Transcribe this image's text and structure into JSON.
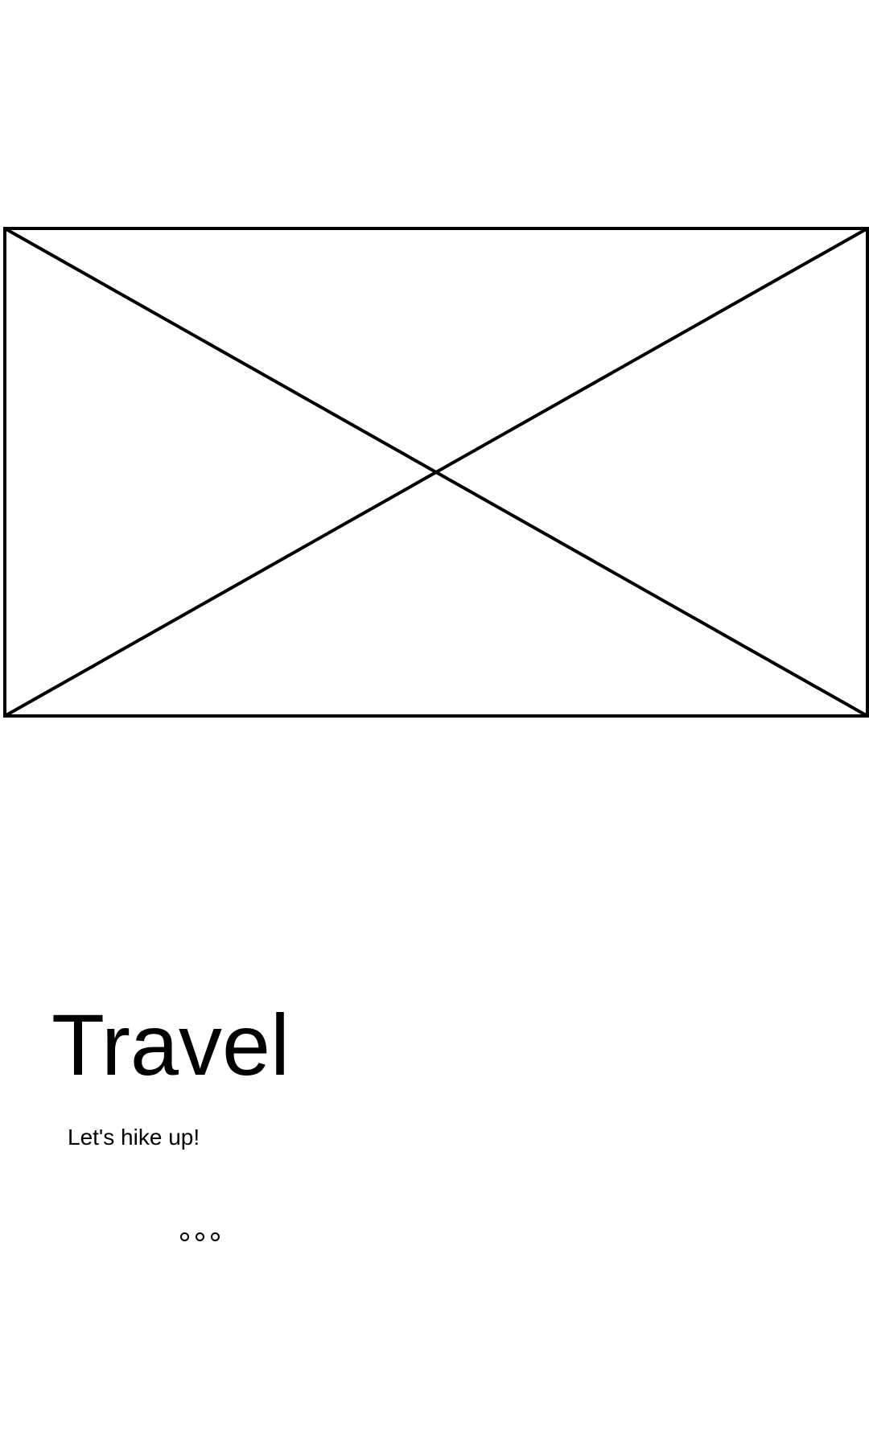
{
  "hero": {
    "image_placeholder": "image-placeholder"
  },
  "content": {
    "title": "Travel",
    "subtitle": "Let's hike up!"
  },
  "pager": {
    "dots": 3
  }
}
